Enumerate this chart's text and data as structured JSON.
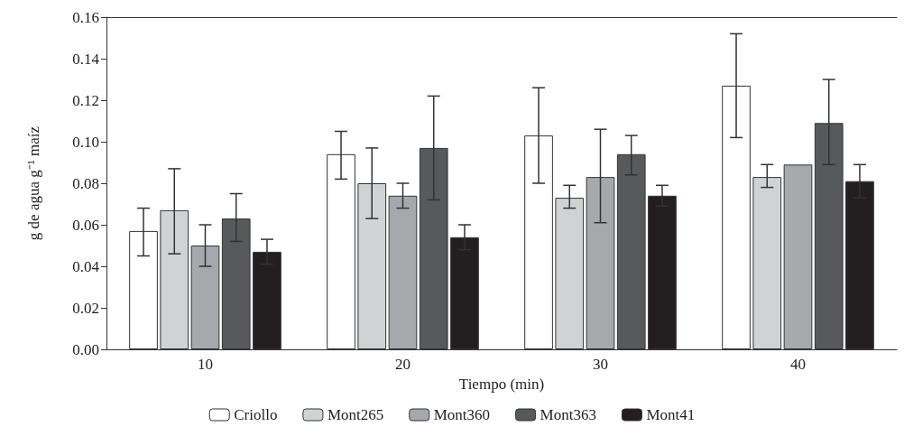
{
  "chart_data": {
    "type": "bar",
    "xlabel": "Tiempo (min)",
    "ylabel": "g de agua g⁻¹ maíz",
    "categories": [
      "10",
      "20",
      "30",
      "40"
    ],
    "ylim": [
      0,
      0.16
    ],
    "yticks": [
      {
        "value": 0,
        "label": "0.00"
      },
      {
        "value": 0.02,
        "label": "0.02"
      },
      {
        "value": 0.04,
        "label": "0.04"
      },
      {
        "value": 0.06,
        "label": "0.06"
      },
      {
        "value": 0.08,
        "label": "0.08"
      },
      {
        "value": 0.1,
        "label": "0.10"
      },
      {
        "value": 0.12,
        "label": "0.12"
      },
      {
        "value": 0.14,
        "label": "0.14"
      },
      {
        "value": 0.16,
        "label": "0.16"
      }
    ],
    "grid": false,
    "legend": "bottom",
    "series": [
      {
        "name": "Criollo",
        "color": "#ffffff",
        "values": [
          0.057,
          0.094,
          0.103,
          0.127
        ],
        "errors": [
          [
            0.045,
            0.068
          ],
          [
            0.082,
            0.105
          ],
          [
            0.08,
            0.126
          ],
          [
            0.102,
            0.152
          ]
        ]
      },
      {
        "name": "Mont265",
        "color": "#d1d2d4",
        "values": [
          0.067,
          0.08,
          0.073,
          0.083
        ],
        "errors": [
          [
            0.046,
            0.087
          ],
          [
            0.063,
            0.097
          ],
          [
            0.068,
            0.079
          ],
          [
            0.078,
            0.089
          ]
        ]
      },
      {
        "name": "Mont360",
        "color": "#a7a8ab",
        "values": [
          0.05,
          0.074,
          0.083,
          0.089
        ],
        "errors": [
          [
            0.04,
            0.06
          ],
          [
            0.068,
            0.08
          ],
          [
            0.061,
            0.106
          ],
          null
        ]
      },
      {
        "name": "Mont363",
        "color": "#58595b",
        "values": [
          0.063,
          0.097,
          0.094,
          0.109
        ],
        "errors": [
          [
            0.052,
            0.075
          ],
          [
            0.072,
            0.122
          ],
          [
            0.084,
            0.103
          ],
          [
            0.089,
            0.13
          ]
        ]
      },
      {
        "name": "Mont41",
        "color": "#231f20",
        "values": [
          0.047,
          0.054,
          0.074,
          0.081
        ],
        "errors": [
          0.006,
          0.006,
          0.005,
          0.008
        ]
      }
    ]
  }
}
